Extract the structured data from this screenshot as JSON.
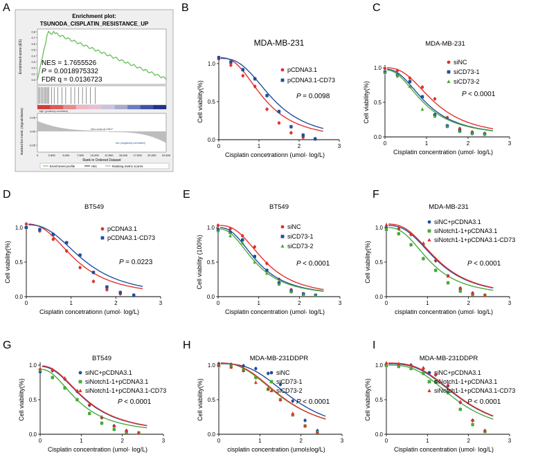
{
  "figure_panels": "3x3 grid",
  "colors": {
    "red": "#e0312b",
    "blue": "#1f4e9c",
    "green": "#4aa83c",
    "gsea_green": "#5ab84b"
  },
  "gsea": {
    "letter": "A",
    "title": "Enrichment plot:",
    "subtitle": "TSUNODA_CISPLATIN_RESISTANCE_UP",
    "es_ylabel": "Enrichment score (ES)",
    "rank_ylabel": "Ranked list metric (Signal2Noise)",
    "nes": "NES = 1.7655526",
    "p": "0.0018975332",
    "fdr": "FDR q = 0.0136723",
    "es_ticks": [
      "0.8",
      "0.7",
      "0.6",
      "0.5",
      "0.4",
      "0.3",
      "0.2",
      "0.1",
      "0.0"
    ],
    "rank_ticks": [
      "0.25",
      "0.00",
      "-0.25"
    ],
    "x_ticks": [
      "0",
      "2,500",
      "5,000",
      "7,500",
      "10,000",
      "12,500",
      "15,000",
      "17,500",
      "20,000",
      "22,500"
    ],
    "xlabel": "Rank in Ordered Dataset",
    "pos_label": "'high' (positively correlated)",
    "neg_label": "'low' (negatively correlated)",
    "zero_cross": "Zero cross at 12617",
    "legend": [
      "Enrichment profile",
      "Hits",
      "Ranking metric scores"
    ]
  },
  "chart_data": [
    {
      "letter": "B",
      "type": "scatter",
      "title": "MDA-MB-231",
      "title_bold": false,
      "ylabel": "Cell viability(%)",
      "xlabel": "Cisplatin concetrationn (umol·  log/L)",
      "xlim": [
        0,
        3
      ],
      "ylim": [
        0,
        1.0
      ],
      "xticks": [
        "0",
        "1",
        "2",
        "3"
      ],
      "yticks": [
        "0.0",
        "0.5",
        "1.0"
      ],
      "pvalue": "= 0.0098",
      "series": [
        {
          "name": "pCDNA3.1",
          "color": "#e0312b",
          "marker": "circle",
          "ic50": 1.13,
          "hill": 2.6,
          "top": 1.08,
          "x": [
            0,
            0.3,
            0.6,
            0.9,
            1.2,
            1.5,
            1.8,
            2.1,
            2.4
          ],
          "y": [
            1.06,
            0.98,
            0.84,
            0.7,
            0.4,
            0.22,
            0.09,
            0.03,
            0.01
          ]
        },
        {
          "name": "pCDNA3.1-CD73",
          "color": "#1f4e9c",
          "marker": "square",
          "ic50": 1.35,
          "hill": 2.8,
          "top": 1.07,
          "x": [
            0,
            0.3,
            0.6,
            0.9,
            1.2,
            1.5,
            1.8,
            2.1,
            2.4
          ],
          "y": [
            1.08,
            1.02,
            0.92,
            0.8,
            0.58,
            0.37,
            0.17,
            0.06,
            0.01
          ]
        }
      ]
    },
    {
      "letter": "C",
      "type": "scatter",
      "title": "MDA-MB-231",
      "title_bold": false,
      "ylabel": "Cell viability(%)",
      "xlabel": "Cisplatin concentration (umol·  log/L)",
      "xlim": [
        0,
        3
      ],
      "ylim": [
        0,
        1.0
      ],
      "xticks": [
        "0",
        "1",
        "2",
        "3"
      ],
      "yticks": [
        "0.0",
        "0.5",
        "1.0"
      ],
      "pvalue": "< 0.0001",
      "series": [
        {
          "name": "siNC",
          "color": "#e0312b",
          "marker": "circle",
          "ic50": 1.2,
          "hill": 2.6,
          "top": 1.0,
          "x": [
            0,
            0.3,
            0.6,
            0.9,
            1.2,
            1.5,
            1.8,
            2.1,
            2.4
          ],
          "y": [
            0.99,
            0.96,
            0.85,
            0.72,
            0.55,
            0.28,
            0.12,
            0.07,
            0.05
          ]
        },
        {
          "name": "siCD73-1",
          "color": "#1f4e9c",
          "marker": "square",
          "ic50": 1.0,
          "hill": 2.4,
          "top": 0.98,
          "x": [
            0,
            0.3,
            0.6,
            0.9,
            1.2,
            1.5,
            1.8,
            2.1,
            2.4
          ],
          "y": [
            0.94,
            0.9,
            0.8,
            0.58,
            0.32,
            0.16,
            0.09,
            0.05,
            0.04
          ]
        },
        {
          "name": "siCD73-2",
          "color": "#4aa83c",
          "marker": "triangle",
          "ic50": 0.95,
          "hill": 2.3,
          "top": 0.97,
          "x": [
            0,
            0.3,
            0.6,
            0.9,
            1.2,
            1.5,
            1.8,
            2.1,
            2.4
          ],
          "y": [
            0.93,
            0.88,
            0.73,
            0.4,
            0.3,
            0.15,
            0.08,
            0.05,
            0.04
          ]
        }
      ]
    },
    {
      "letter": "D",
      "type": "scatter",
      "title": "BT549",
      "title_bold": false,
      "ylabel": "Cell viability(%)",
      "xlabel": "Cisplatin concetrationn (umol·  log/L)",
      "xlim": [
        0,
        3
      ],
      "ylim": [
        0,
        1.0
      ],
      "xticks": [
        "0",
        "1",
        "2",
        "3"
      ],
      "yticks": [
        "0.0",
        "0.5",
        "1.0"
      ],
      "pvalue": "= 0.0223",
      "series": [
        {
          "name": "pCDNA3.1",
          "color": "#e0312b",
          "marker": "circle",
          "ic50": 1.12,
          "hill": 2.5,
          "top": 1.05,
          "x": [
            0,
            0.3,
            0.6,
            0.9,
            1.2,
            1.5,
            1.8,
            2.1,
            2.4
          ],
          "y": [
            1.05,
            0.95,
            0.83,
            0.66,
            0.42,
            0.22,
            0.1,
            0.04,
            0.02
          ]
        },
        {
          "name": "pCDNA3.1-CD73",
          "color": "#1f4e9c",
          "marker": "square",
          "ic50": 1.3,
          "hill": 2.6,
          "top": 1.04,
          "x": [
            0,
            0.3,
            0.6,
            0.9,
            1.2,
            1.5,
            1.8,
            2.1,
            2.4
          ],
          "y": [
            1.0,
            0.97,
            0.9,
            0.78,
            0.6,
            0.35,
            0.14,
            0.06,
            0.02
          ]
        }
      ]
    },
    {
      "letter": "E",
      "type": "scatter",
      "title": "BT549",
      "title_bold": false,
      "ylabel": "Cell viability (100%)",
      "xlabel": "Cisplatin concentration (umol·  log/L)",
      "xlim": [
        0,
        3
      ],
      "ylim": [
        0,
        1.0
      ],
      "xticks": [
        "0",
        "1",
        "2",
        "3"
      ],
      "yticks": [
        "0.0",
        "0.5",
        "1.0"
      ],
      "pvalue": "< 0.0001",
      "series": [
        {
          "name": "siNC",
          "color": "#e0312b",
          "marker": "circle",
          "ic50": 1.15,
          "hill": 2.7,
          "top": 1.03,
          "x": [
            0,
            0.3,
            0.6,
            0.9,
            1.2,
            1.5,
            1.8,
            2.1,
            2.4
          ],
          "y": [
            1.03,
            0.98,
            0.88,
            0.72,
            0.48,
            0.25,
            0.1,
            0.04,
            0.02
          ]
        },
        {
          "name": "siCD73-1",
          "color": "#1f4e9c",
          "marker": "square",
          "ic50": 0.98,
          "hill": 2.5,
          "top": 1.0,
          "x": [
            0,
            0.3,
            0.6,
            0.9,
            1.2,
            1.5,
            1.8,
            2.1,
            2.4
          ],
          "y": [
            0.97,
            0.93,
            0.82,
            0.58,
            0.38,
            0.2,
            0.08,
            0.04,
            0.02
          ]
        },
        {
          "name": "siCD73-2",
          "color": "#4aa83c",
          "marker": "triangle",
          "ic50": 0.93,
          "hill": 2.4,
          "top": 0.98,
          "x": [
            0,
            0.3,
            0.6,
            0.9,
            1.2,
            1.5,
            1.8,
            2.1,
            2.4
          ],
          "y": [
            0.95,
            0.88,
            0.78,
            0.5,
            0.34,
            0.18,
            0.07,
            0.03,
            0.02
          ]
        }
      ]
    },
    {
      "letter": "F",
      "type": "scatter",
      "title": "MDA-MB-231",
      "title_bold": false,
      "ylabel": "Cell viability(%)",
      "xlabel": "cisplatin concentration (umol·  log/L)",
      "xlim": [
        0,
        3
      ],
      "ylim": [
        0,
        1.0
      ],
      "xticks": [
        "0",
        "1",
        "2",
        "3"
      ],
      "yticks": [
        "0.0",
        "0.5",
        "1.0"
      ],
      "pvalue": "< 0.0001",
      "series": [
        {
          "name": "siNC+pCDNA3.1",
          "color": "#1f4e9c",
          "marker": "circle",
          "ic50": 1.25,
          "hill": 2.7,
          "top": 1.03,
          "x": [
            0,
            0.3,
            0.6,
            0.9,
            1.2,
            1.5,
            1.8,
            2.1,
            2.4
          ],
          "y": [
            1.0,
            0.98,
            0.9,
            0.76,
            0.52,
            0.3,
            0.12,
            0.05,
            0.02
          ]
        },
        {
          "name": "siNotch1-1+pCDNA3.1",
          "color": "#4aa83c",
          "marker": "square",
          "ic50": 1.08,
          "hill": 2.6,
          "top": 1.0,
          "x": [
            0,
            0.3,
            0.6,
            0.9,
            1.2,
            1.5,
            1.8,
            2.1,
            2.4
          ],
          "y": [
            0.97,
            0.91,
            0.75,
            0.55,
            0.38,
            0.2,
            0.08,
            0.03,
            0.02
          ]
        },
        {
          "name": "siNotch1-1+pCDNA3.1-CD73",
          "color": "#e0312b",
          "marker": "triangle",
          "ic50": 1.26,
          "hill": 2.7,
          "top": 1.05,
          "x": [
            0,
            0.3,
            0.6,
            0.9,
            1.2,
            1.5,
            1.8,
            2.1,
            2.4
          ],
          "y": [
            1.04,
            1.0,
            0.91,
            0.77,
            0.54,
            0.3,
            0.12,
            0.05,
            0.02
          ]
        }
      ]
    },
    {
      "letter": "G",
      "type": "scatter",
      "title": "BT549",
      "title_bold": false,
      "ylabel": "Cell viability(%)",
      "xlabel": "Cisplatin concentration (umol·  log/L)",
      "xlim": [
        0,
        3
      ],
      "ylim": [
        0,
        1.0
      ],
      "xticks": [
        "0",
        "1",
        "2",
        "3"
      ],
      "yticks": [
        "0.0",
        "0.5",
        "1.0"
      ],
      "pvalue": "< 0.0001",
      "series": [
        {
          "name": "siNC+pCDNA3.1",
          "color": "#1f4e9c",
          "marker": "circle",
          "ic50": 1.12,
          "hill": 2.3,
          "top": 0.98,
          "x": [
            0,
            0.3,
            0.6,
            0.9,
            1.2,
            1.5,
            1.8,
            2.1,
            2.4
          ],
          "y": [
            0.9,
            0.92,
            0.8,
            0.62,
            0.42,
            0.24,
            0.12,
            0.05,
            0.02
          ]
        },
        {
          "name": "siNotch1-1+pCDNA3.1",
          "color": "#4aa83c",
          "marker": "square",
          "ic50": 0.95,
          "hill": 2.2,
          "top": 0.94,
          "x": [
            0,
            0.3,
            0.6,
            0.9,
            1.2,
            1.5,
            1.8,
            2.1,
            2.4
          ],
          "y": [
            0.93,
            0.82,
            0.67,
            0.5,
            0.3,
            0.16,
            0.07,
            0.03,
            0.02
          ]
        },
        {
          "name": "siNotch1-1+pCDNA3.1-CD73",
          "color": "#e0312b",
          "marker": "triangle",
          "ic50": 1.13,
          "hill": 2.3,
          "top": 0.99,
          "x": [
            0,
            0.3,
            0.6,
            0.9,
            1.2,
            1.5,
            1.8,
            2.1,
            2.4
          ],
          "y": [
            0.95,
            0.93,
            0.81,
            0.63,
            0.44,
            0.25,
            0.12,
            0.05,
            0.02
          ]
        }
      ]
    },
    {
      "letter": "H",
      "type": "scatter",
      "title": "MDA-MB-231DDPR",
      "title_bold": false,
      "ylabel": "Cell viability(%)",
      "xlabel": "cisplatin concentration (umol±log/L)",
      "xlim": [
        0,
        3
      ],
      "ylim": [
        0,
        1.0
      ],
      "xticks": [
        "0",
        "1",
        "2",
        "3"
      ],
      "yticks": [
        "0.0",
        "0.5",
        "1.0"
      ],
      "pvalue": "< 0.0001",
      "series": [
        {
          "name": "siNC",
          "color": "#1f4e9c",
          "marker": "circle",
          "ic50": 1.82,
          "hill": 3.0,
          "top": 1.02,
          "x": [
            0,
            0.3,
            0.6,
            0.9,
            1.2,
            1.5,
            1.8,
            2.1,
            2.4
          ],
          "y": [
            1.02,
            1.01,
            0.99,
            0.95,
            0.88,
            0.72,
            0.48,
            0.2,
            0.05
          ]
        },
        {
          "name": "siCD73-1",
          "color": "#4aa83c",
          "marker": "square",
          "ic50": 1.58,
          "hill": 2.6,
          "top": 1.03,
          "x": [
            0,
            0.3,
            0.6,
            0.9,
            1.2,
            1.5,
            1.8,
            2.1,
            2.4
          ],
          "y": [
            0.99,
            0.98,
            0.93,
            0.82,
            0.65,
            0.5,
            0.28,
            0.12,
            0.03
          ]
        },
        {
          "name": "siCD73-2",
          "color": "#e0312b",
          "marker": "triangle",
          "ic50": 1.6,
          "hill": 2.7,
          "top": 1.03,
          "x": [
            0,
            0.3,
            0.6,
            0.9,
            1.2,
            1.5,
            1.8,
            2.1,
            2.4
          ],
          "y": [
            1.0,
            0.97,
            0.92,
            0.75,
            0.66,
            0.5,
            0.3,
            0.12,
            0.03
          ]
        }
      ]
    },
    {
      "letter": "I",
      "type": "scatter",
      "title": "MDA-MB-231DDPR",
      "title_bold": false,
      "ylabel": "Cell viability(%)",
      "xlabel": "Cisplatin concentration (umol·  log/L)",
      "xlim": [
        0,
        3
      ],
      "ylim": [
        0,
        1.0
      ],
      "xticks": [
        "0",
        "1",
        "2",
        "3"
      ],
      "yticks": [
        "0.0",
        "0.5",
        "1.0"
      ],
      "pvalue": "< 0.0001",
      "series": [
        {
          "name": "siNC+pCDNA3.1",
          "color": "#1f4e9c",
          "marker": "circle",
          "ic50": 1.82,
          "hill": 3.0,
          "top": 1.02,
          "x": [
            0,
            0.3,
            0.6,
            0.9,
            1.2,
            1.5,
            1.8,
            2.1,
            2.4
          ],
          "y": [
            1.02,
            1.01,
            1.0,
            0.95,
            0.86,
            0.7,
            0.46,
            0.2,
            0.05
          ]
        },
        {
          "name": "siNotch1-1+pCDNA3.1",
          "color": "#4aa83c",
          "marker": "square",
          "ic50": 1.7,
          "hill": 3.0,
          "top": 1.0,
          "x": [
            0,
            0.3,
            0.6,
            0.9,
            1.2,
            1.5,
            1.8,
            2.1,
            2.4
          ],
          "y": [
            0.99,
            0.98,
            0.95,
            0.88,
            0.76,
            0.6,
            0.36,
            0.14,
            0.04
          ]
        },
        {
          "name": "siNotch1-1+pCDNA3.1-CD73",
          "color": "#e0312b",
          "marker": "triangle",
          "ic50": 1.83,
          "hill": 3.0,
          "top": 1.03,
          "x": [
            0,
            0.3,
            0.6,
            0.9,
            1.2,
            1.5,
            1.8,
            2.1,
            2.4
          ],
          "y": [
            1.03,
            1.02,
            1.0,
            0.96,
            0.87,
            0.72,
            0.47,
            0.2,
            0.05
          ]
        }
      ]
    }
  ]
}
